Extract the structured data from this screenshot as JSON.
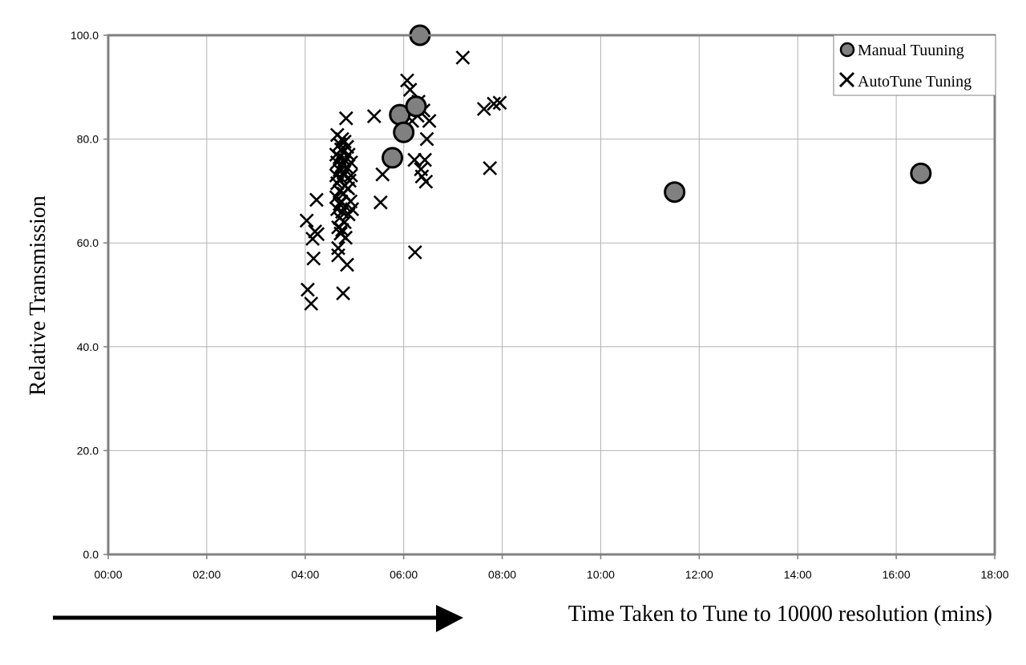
{
  "chart_data": {
    "type": "scatter",
    "title": "",
    "xlabel": "Time Taken to Tune to 10000 resolution (mins)",
    "ylabel": "Relative Transmission",
    "xlim": [
      0,
      18
    ],
    "ylim": [
      0,
      100
    ],
    "x_ticks": [
      "00:00",
      "02:00",
      "04:00",
      "06:00",
      "08:00",
      "10:00",
      "12:00",
      "14:00",
      "16:00",
      "18:00"
    ],
    "y_ticks": [
      "0.0",
      "20.0",
      "40.0",
      "60.0",
      "80.0",
      "100.0"
    ],
    "grid": true,
    "legend_position": "top-right",
    "series": [
      {
        "name": "Manual Tuuning",
        "marker": "circle",
        "color": "#808080",
        "points": [
          {
            "x": 6.33,
            "y": 100.0
          },
          {
            "x": 5.92,
            "y": 84.7
          },
          {
            "x": 6.0,
            "y": 81.3
          },
          {
            "x": 6.25,
            "y": 86.3
          },
          {
            "x": 5.77,
            "y": 76.4
          },
          {
            "x": 11.5,
            "y": 69.8
          },
          {
            "x": 16.5,
            "y": 73.4
          }
        ]
      },
      {
        "name": "AutoTune Tuning",
        "marker": "cross",
        "color": "#000000",
        "points": [
          {
            "x": 4.03,
            "y": 64.3
          },
          {
            "x": 4.05,
            "y": 51.0
          },
          {
            "x": 4.12,
            "y": 48.3
          },
          {
            "x": 4.15,
            "y": 60.8
          },
          {
            "x": 4.17,
            "y": 57.0
          },
          {
            "x": 4.2,
            "y": 62.2
          },
          {
            "x": 4.23,
            "y": 68.3
          },
          {
            "x": 4.25,
            "y": 61.7
          },
          {
            "x": 4.63,
            "y": 77.0
          },
          {
            "x": 4.63,
            "y": 73.0
          },
          {
            "x": 4.63,
            "y": 68.8
          },
          {
            "x": 4.65,
            "y": 80.8
          },
          {
            "x": 4.65,
            "y": 75.5
          },
          {
            "x": 4.65,
            "y": 71.5
          },
          {
            "x": 4.65,
            "y": 66.5
          },
          {
            "x": 4.67,
            "y": 63.0
          },
          {
            "x": 4.67,
            "y": 59.0
          },
          {
            "x": 4.67,
            "y": 57.6
          },
          {
            "x": 4.7,
            "y": 79.0
          },
          {
            "x": 4.7,
            "y": 76.5
          },
          {
            "x": 4.7,
            "y": 74.0
          },
          {
            "x": 4.7,
            "y": 70.0
          },
          {
            "x": 4.7,
            "y": 67.5
          },
          {
            "x": 4.7,
            "y": 64.8
          },
          {
            "x": 4.72,
            "y": 61.8
          },
          {
            "x": 4.73,
            "y": 78.0
          },
          {
            "x": 4.73,
            "y": 72.5
          },
          {
            "x": 4.73,
            "y": 68.0
          },
          {
            "x": 4.75,
            "y": 80.0
          },
          {
            "x": 4.75,
            "y": 75.0
          },
          {
            "x": 4.75,
            "y": 66.0
          },
          {
            "x": 4.75,
            "y": 62.5
          },
          {
            "x": 4.77,
            "y": 50.3
          },
          {
            "x": 4.77,
            "y": 77.5
          },
          {
            "x": 4.78,
            "y": 73.5
          },
          {
            "x": 4.78,
            "y": 69.5
          },
          {
            "x": 4.8,
            "y": 79.5
          },
          {
            "x": 4.8,
            "y": 76.0
          },
          {
            "x": 4.8,
            "y": 71.0
          },
          {
            "x": 4.8,
            "y": 64.0
          },
          {
            "x": 4.82,
            "y": 67.0
          },
          {
            "x": 4.82,
            "y": 61.0
          },
          {
            "x": 4.83,
            "y": 84.0
          },
          {
            "x": 4.85,
            "y": 55.8
          },
          {
            "x": 4.85,
            "y": 78.5
          },
          {
            "x": 4.85,
            "y": 74.5
          },
          {
            "x": 4.87,
            "y": 70.5
          },
          {
            "x": 4.88,
            "y": 65.5
          },
          {
            "x": 4.88,
            "y": 77.0
          },
          {
            "x": 4.9,
            "y": 72.0
          },
          {
            "x": 4.92,
            "y": 68.0
          },
          {
            "x": 4.93,
            "y": 75.5
          },
          {
            "x": 4.93,
            "y": 73.0
          },
          {
            "x": 4.95,
            "y": 66.5
          },
          {
            "x": 5.4,
            "y": 84.4
          },
          {
            "x": 5.53,
            "y": 67.8
          },
          {
            "x": 5.57,
            "y": 73.2
          },
          {
            "x": 6.07,
            "y": 91.3
          },
          {
            "x": 6.13,
            "y": 89.5
          },
          {
            "x": 6.17,
            "y": 83.5
          },
          {
            "x": 6.22,
            "y": 76.0
          },
          {
            "x": 6.23,
            "y": 58.2
          },
          {
            "x": 6.28,
            "y": 84.5
          },
          {
            "x": 6.3,
            "y": 87.2
          },
          {
            "x": 6.35,
            "y": 74.2
          },
          {
            "x": 6.37,
            "y": 72.8
          },
          {
            "x": 6.4,
            "y": 85.5
          },
          {
            "x": 6.43,
            "y": 76.0
          },
          {
            "x": 6.45,
            "y": 71.8
          },
          {
            "x": 6.47,
            "y": 80.0
          },
          {
            "x": 6.52,
            "y": 83.5
          },
          {
            "x": 7.2,
            "y": 95.7
          },
          {
            "x": 7.63,
            "y": 85.8
          },
          {
            "x": 7.75,
            "y": 74.4
          },
          {
            "x": 7.83,
            "y": 86.8
          },
          {
            "x": 7.95,
            "y": 87.0
          }
        ]
      }
    ]
  }
}
